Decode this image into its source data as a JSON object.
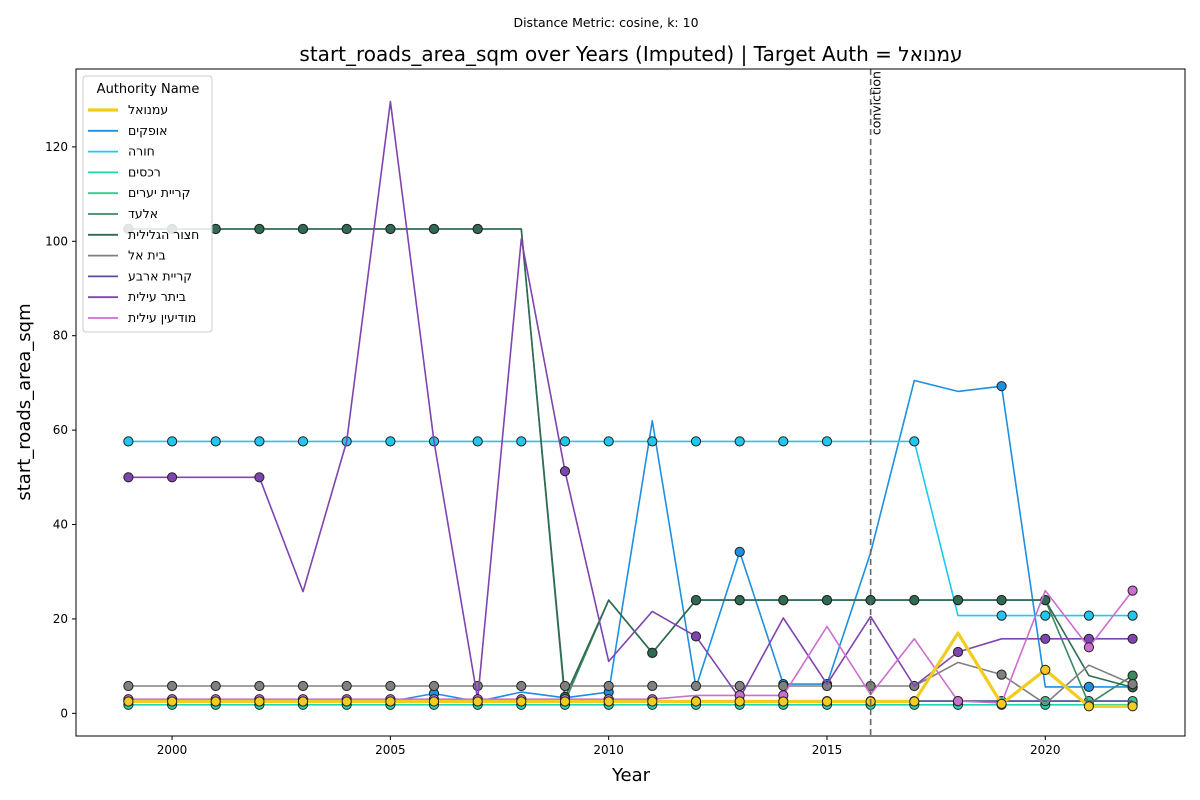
{
  "chart_data": {
    "type": "line",
    "suptitle": "Distance Metric: cosine, k: 10",
    "title": "start_roads_area_sqm over Years (Imputed) | Target Auth = עמנואל",
    "xlabel": "Year",
    "ylabel": "start_roads_area_sqm",
    "xlim": [
      1997.8,
      2023.2
    ],
    "ylim": [
      -4.8,
      136.5
    ],
    "x_ticks": [
      2000,
      2005,
      2010,
      2015,
      2020
    ],
    "y_ticks": [
      0,
      20,
      40,
      60,
      80,
      100,
      120
    ],
    "grid": false,
    "legend": {
      "title": "Authority Name",
      "placement": "top-left"
    },
    "annotations": [
      {
        "x": 2016,
        "label": "conviction",
        "style": "dashed-vertical"
      }
    ],
    "years": [
      1999,
      2000,
      2001,
      2002,
      2003,
      2004,
      2005,
      2006,
      2007,
      2008,
      2009,
      2010,
      2011,
      2012,
      2013,
      2014,
      2015,
      2016,
      2017,
      2018,
      2019,
      2020,
      2021,
      2022
    ],
    "series": [
      {
        "name": "עמנואל",
        "color": "#f2cc1f",
        "width": 3.2,
        "z": 12,
        "values": [
          2.5,
          2.5,
          2.5,
          2.5,
          2.5,
          2.5,
          2.5,
          2.5,
          2.5,
          2.5,
          2.5,
          2.5,
          2.5,
          2.5,
          2.5,
          2.5,
          2.5,
          2.5,
          2.5,
          17.0,
          2.0,
          9.2,
          1.5,
          1.5
        ],
        "markers": [
          1,
          1,
          1,
          1,
          1,
          1,
          1,
          1,
          1,
          1,
          1,
          1,
          1,
          1,
          1,
          1,
          1,
          1,
          1,
          0,
          1,
          1,
          1,
          1
        ]
      },
      {
        "name": "אופקים",
        "color": "#1f8fe0",
        "width": 1.6,
        "z": 5,
        "values": [
          2.5,
          2.5,
          2.5,
          2.5,
          2.5,
          2.5,
          2.5,
          4.2,
          2.5,
          4.5,
          3.3,
          4.5,
          62.0,
          5.5,
          34.2,
          6.2,
          6.2,
          34.0,
          70.5,
          68.2,
          69.3,
          5.6,
          5.6,
          5.6
        ],
        "markers": [
          1,
          1,
          1,
          1,
          1,
          1,
          1,
          1,
          1,
          0,
          0,
          1,
          0,
          0,
          1,
          1,
          1,
          0,
          0,
          0,
          1,
          0,
          1,
          1
        ]
      },
      {
        "name": "חורה",
        "color": "#1ec8ee",
        "width": 1.6,
        "z": 6,
        "values": [
          57.6,
          57.6,
          57.6,
          57.6,
          57.6,
          57.6,
          57.6,
          57.6,
          57.6,
          57.6,
          57.6,
          57.6,
          57.6,
          57.6,
          57.6,
          57.6,
          57.6,
          57.6,
          57.6,
          20.7,
          20.7,
          20.7,
          20.7,
          20.7
        ],
        "markers": [
          1,
          1,
          1,
          1,
          1,
          1,
          1,
          1,
          1,
          1,
          1,
          1,
          1,
          1,
          1,
          1,
          1,
          0,
          1,
          0,
          1,
          1,
          1,
          1
        ]
      },
      {
        "name": "רכסים",
        "color": "#22d6b4",
        "width": 1.6,
        "z": 4,
        "values": [
          1.8,
          1.8,
          1.8,
          1.8,
          1.8,
          1.8,
          1.8,
          1.8,
          1.8,
          1.8,
          1.8,
          1.8,
          1.8,
          1.8,
          1.8,
          1.8,
          1.8,
          1.8,
          1.8,
          1.8,
          1.8,
          1.8,
          1.8,
          1.8
        ],
        "markers": [
          1,
          1,
          1,
          1,
          1,
          1,
          1,
          1,
          1,
          1,
          1,
          1,
          1,
          1,
          1,
          1,
          1,
          1,
          1,
          1,
          1,
          1,
          1,
          1
        ]
      },
      {
        "name": "קריית יערים",
        "color": "#2ecc8a",
        "width": 1.6,
        "z": 4,
        "values": [
          2.6,
          2.6,
          2.6,
          2.6,
          2.6,
          2.6,
          2.6,
          2.6,
          2.6,
          2.6,
          2.6,
          2.6,
          2.6,
          2.6,
          2.6,
          2.6,
          2.6,
          2.6,
          2.6,
          2.6,
          2.6,
          2.6,
          2.6,
          2.6
        ],
        "markers": [
          1,
          1,
          1,
          1,
          1,
          1,
          1,
          1,
          1,
          1,
          1,
          1,
          1,
          1,
          1,
          1,
          1,
          1,
          1,
          1,
          1,
          1,
          1,
          1
        ]
      },
      {
        "name": "אלעד",
        "color": "#3a8a5e",
        "width": 1.6,
        "z": 7,
        "values": [
          102.6,
          102.6,
          102.6,
          102.6,
          102.6,
          102.6,
          102.6,
          102.6,
          102.6,
          102.6,
          2.5,
          24.0,
          12.8,
          24.0,
          24.0,
          24.0,
          24.0,
          24.0,
          24.0,
          24.0,
          24.0,
          24.0,
          2.0,
          8.0
        ],
        "markers": [
          1,
          1,
          1,
          1,
          1,
          1,
          1,
          1,
          1,
          0,
          0,
          0,
          1,
          1,
          1,
          1,
          1,
          1,
          1,
          1,
          1,
          1,
          0,
          1
        ]
      },
      {
        "name": "חצור הגלילית",
        "color": "#2f6a52",
        "width": 1.6,
        "z": 7,
        "values": [
          102.6,
          102.6,
          102.6,
          102.6,
          102.6,
          102.6,
          102.6,
          102.6,
          102.6,
          102.6,
          3.5,
          24.0,
          12.8,
          24.0,
          24.0,
          24.0,
          24.0,
          24.0,
          24.0,
          24.0,
          24.0,
          24.0,
          8.0,
          5.5
        ],
        "markers": [
          1,
          1,
          1,
          1,
          1,
          1,
          1,
          1,
          1,
          0,
          1,
          0,
          1,
          1,
          1,
          1,
          1,
          1,
          1,
          1,
          1,
          1,
          0,
          1
        ]
      },
      {
        "name": "בית אל",
        "color": "#808080",
        "width": 1.6,
        "z": 8,
        "values": [
          5.8,
          5.8,
          5.8,
          5.8,
          5.8,
          5.8,
          5.8,
          5.8,
          5.8,
          5.8,
          5.8,
          5.8,
          5.8,
          5.8,
          5.8,
          5.8,
          5.8,
          5.8,
          5.8,
          10.8,
          8.2,
          2.0,
          10.2,
          6.2
        ],
        "markers": [
          1,
          1,
          1,
          1,
          1,
          1,
          1,
          1,
          1,
          1,
          1,
          1,
          1,
          1,
          1,
          1,
          1,
          1,
          1,
          0,
          1,
          0,
          0,
          1
        ]
      },
      {
        "name": "קריית ארבע",
        "color": "#5a4ea0",
        "width": 1.6,
        "z": 5,
        "values": [
          2.6,
          2.6,
          2.6,
          2.6,
          2.6,
          2.6,
          2.6,
          2.6,
          2.6,
          2.6,
          2.6,
          2.6,
          2.6,
          2.6,
          2.6,
          2.6,
          2.6,
          2.6,
          2.6,
          2.6,
          2.6,
          2.6,
          2.6,
          2.6
        ],
        "markers": [
          0,
          0,
          0,
          0,
          0,
          0,
          0,
          0,
          0,
          0,
          0,
          0,
          0,
          0,
          0,
          0,
          0,
          0,
          0,
          0,
          0,
          0,
          0,
          0
        ]
      },
      {
        "name": "ביתר עילית",
        "color": "#7f44b0",
        "width": 1.6,
        "z": 9,
        "values": [
          50.0,
          50.0,
          50.0,
          50.0,
          25.8,
          57.6,
          129.6,
          57.6,
          3.0,
          100.5,
          51.3,
          11.0,
          21.6,
          16.3,
          3.2,
          20.2,
          6.2,
          20.5,
          5.8,
          13.0,
          15.8,
          15.8,
          15.8,
          15.8
        ],
        "markers": [
          1,
          1,
          0,
          1,
          0,
          0,
          0,
          0,
          0,
          0,
          1,
          0,
          0,
          1,
          0,
          0,
          0,
          0,
          0,
          1,
          0,
          1,
          1,
          1
        ]
      },
      {
        "name": "מודיעין עילית",
        "color": "#cc6ed0",
        "width": 1.6,
        "z": 10,
        "values": [
          3.0,
          3.0,
          3.0,
          3.0,
          3.0,
          3.0,
          3.0,
          3.0,
          3.0,
          3.0,
          3.0,
          3.0,
          3.0,
          3.8,
          3.8,
          3.8,
          18.4,
          4.0,
          15.8,
          2.6,
          2.2,
          26.0,
          14.0,
          26.0
        ],
        "markers": [
          1,
          1,
          1,
          1,
          1,
          1,
          1,
          1,
          1,
          1,
          1,
          1,
          1,
          0,
          1,
          1,
          0,
          0,
          0,
          1,
          0,
          0,
          1,
          1
        ]
      }
    ]
  }
}
